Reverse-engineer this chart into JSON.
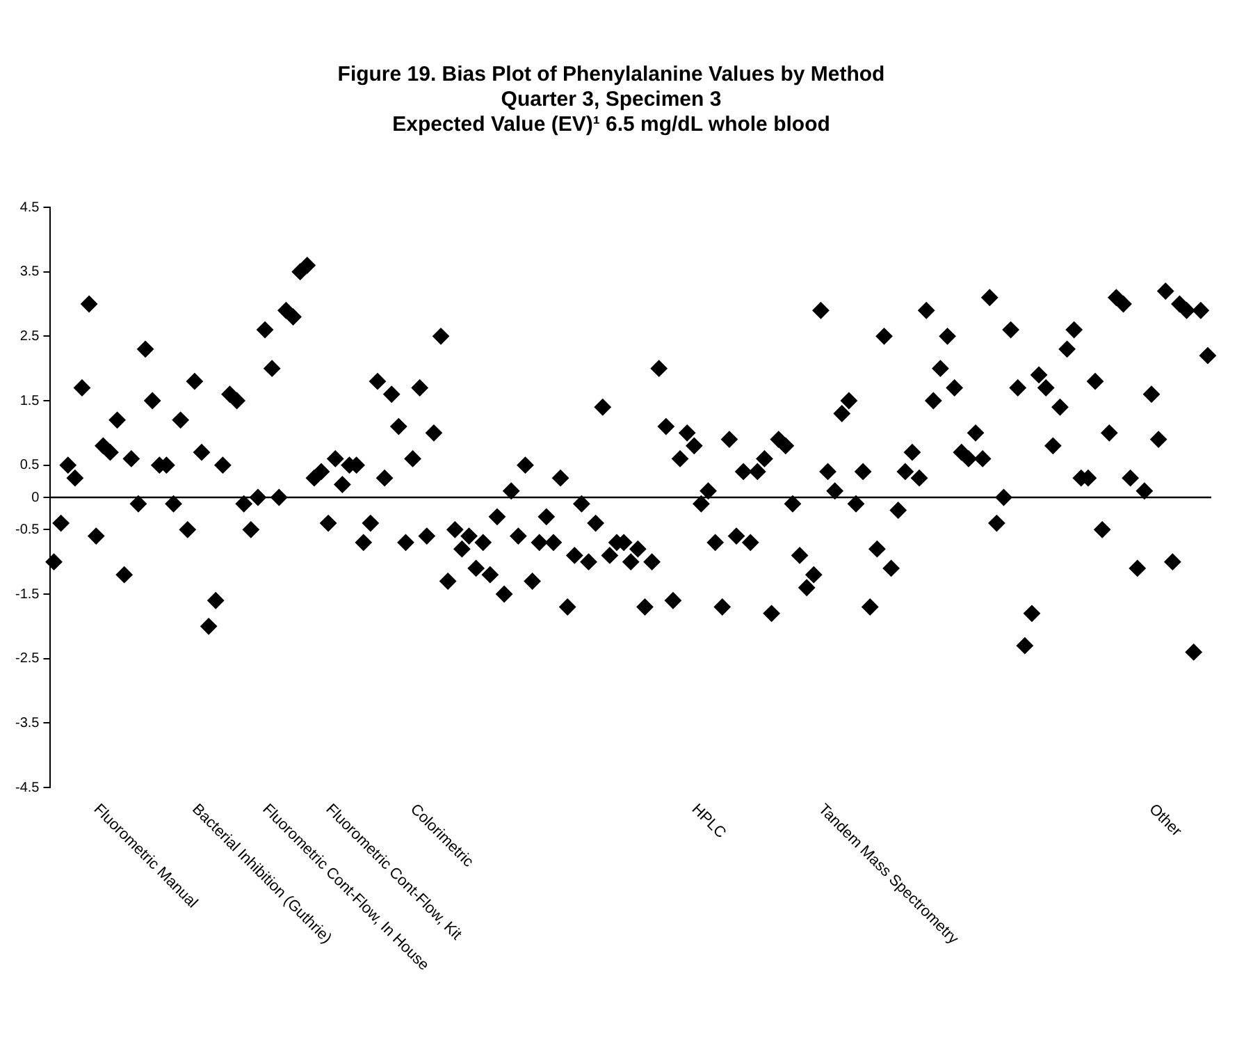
{
  "chart_data": {
    "type": "scatter",
    "title": "Figure 19. Bias Plot of Phenylalanine Values by Method",
    "subtitle": [
      "Quarter 3, Specimen 3",
      "Expected Value (EV)¹ 6.5 mg/dL whole blood"
    ],
    "categories": [
      null,
      null,
      null,
      null,
      null,
      null,
      "Fluorometric Manual",
      null,
      null,
      null,
      null,
      null,
      null,
      null,
      null,
      null,
      null,
      null,
      null,
      null,
      "Bacterial Inhibition (Guthrie)",
      null,
      null,
      null,
      null,
      null,
      null,
      null,
      null,
      null,
      "Fluorometric Cont-Flow, In House",
      null,
      null,
      null,
      null,
      null,
      null,
      null,
      null,
      "Fluorometric Cont-Flow, Kit",
      null,
      null,
      null,
      null,
      null,
      null,
      null,
      null,
      null,
      null,
      null,
      "Colorimetric",
      null,
      null,
      null,
      null,
      null,
      null,
      null,
      null,
      null,
      null,
      null,
      null,
      null,
      null,
      null,
      null,
      null,
      null,
      null,
      null,
      null,
      null,
      null,
      null,
      null,
      null,
      null,
      null,
      null,
      null,
      null,
      null,
      null,
      null,
      null,
      null,
      null,
      null,
      null,
      "HPLC",
      null,
      null,
      null,
      null,
      null,
      null,
      null,
      null,
      null,
      null,
      null,
      null,
      null,
      null,
      null,
      null,
      null,
      "Tandem Mass Spectrometry",
      null,
      null,
      null,
      null,
      null,
      null,
      null,
      null,
      null,
      null,
      null,
      null,
      null,
      null,
      null,
      null,
      null,
      null,
      null,
      null,
      null,
      null,
      null,
      null,
      null,
      null,
      null,
      null,
      null,
      null,
      null,
      null,
      null,
      null,
      null,
      null,
      null,
      null,
      null,
      null,
      null,
      null,
      null,
      null,
      null,
      null,
      "Other",
      null,
      null,
      null,
      null,
      null,
      null,
      null,
      null
    ],
    "values": [
      -1.0,
      -0.4,
      0.5,
      0.3,
      1.7,
      3.0,
      -0.6,
      0.8,
      0.7,
      1.2,
      -1.2,
      0.6,
      -0.1,
      2.3,
      1.5,
      0.5,
      0.5,
      -0.1,
      1.2,
      -0.5,
      1.8,
      0.7,
      -2.0,
      -1.6,
      0.5,
      1.6,
      1.5,
      -0.1,
      -0.5,
      0.0,
      2.6,
      2.0,
      0.0,
      2.9,
      2.8,
      3.5,
      3.6,
      0.3,
      0.4,
      -0.4,
      0.6,
      0.2,
      0.5,
      0.5,
      -0.7,
      -0.4,
      1.8,
      0.3,
      1.6,
      1.1,
      -0.7,
      0.6,
      1.7,
      -0.6,
      1.0,
      2.5,
      -1.3,
      -0.5,
      -0.8,
      -0.6,
      -1.1,
      -0.7,
      -1.2,
      -0.3,
      -1.5,
      0.1,
      -0.6,
      0.5,
      -1.3,
      -0.7,
      -0.3,
      -0.7,
      0.3,
      -1.7,
      -0.9,
      -0.1,
      -1.0,
      -0.4,
      1.4,
      -0.9,
      -0.7,
      -0.7,
      -1.0,
      -0.8,
      -1.7,
      -1.0,
      2.0,
      1.1,
      -1.6,
      0.6,
      1.0,
      0.8,
      -0.1,
      0.1,
      -0.7,
      -1.7,
      0.9,
      -0.6,
      0.4,
      -0.7,
      0.4,
      0.6,
      -1.8,
      0.9,
      0.8,
      -0.1,
      -0.9,
      -1.4,
      -1.2,
      2.9,
      0.4,
      0.1,
      1.3,
      1.5,
      -0.1,
      0.4,
      -1.7,
      -0.8,
      2.5,
      -1.1,
      -0.2,
      0.4,
      0.7,
      0.3,
      2.9,
      1.5,
      2.0,
      2.5,
      1.7,
      0.7,
      0.6,
      1.0,
      0.6,
      3.1,
      -0.4,
      0.0,
      2.6,
      1.7,
      -2.3,
      -1.8,
      1.9,
      1.7,
      0.8,
      1.4,
      2.3,
      2.6,
      0.3,
      0.3,
      1.8,
      -0.5,
      1.0,
      3.1,
      3.0,
      0.3,
      -1.1,
      0.1,
      1.6,
      0.9,
      3.2,
      -1.0,
      3.0,
      2.9,
      -2.4,
      2.9,
      2.2
    ],
    "color": "#000000",
    "marker": "diamond",
    "ylim": [
      -4.5,
      4.5
    ],
    "yticks": [
      -4.5,
      -3.5,
      -2.5,
      -1.5,
      -0.5,
      0,
      0.5,
      1.5,
      2.5,
      3.5,
      4.5
    ],
    "ref_lines": [
      {
        "axis": "y",
        "value": 0,
        "color": "#000000"
      }
    ],
    "grid": false,
    "legend": false
  }
}
